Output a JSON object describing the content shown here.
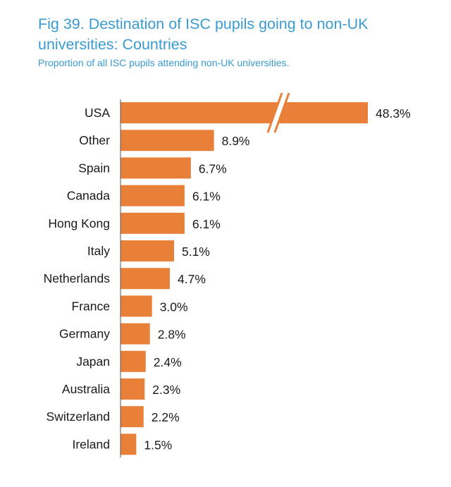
{
  "header": {
    "title": "Fig 39. Destination of ISC pupils going to non-UK universities: Countries",
    "subtitle": "Proportion of all ISC pupils attending non-UK universities."
  },
  "chart_data": {
    "type": "bar",
    "orientation": "horizontal",
    "title": "Fig 39. Destination of ISC pupils going to non-UK universities: Countries",
    "subtitle": "Proportion of all ISC pupils attending non-UK universities.",
    "categories": [
      "USA",
      "Other",
      "Spain",
      "Canada",
      "Hong Kong",
      "Italy",
      "Netherlands",
      "France",
      "Germany",
      "Japan",
      "Australia",
      "Switzerland",
      "Ireland"
    ],
    "values": [
      48.3,
      8.9,
      6.7,
      6.1,
      6.1,
      5.1,
      4.7,
      3.0,
      2.8,
      2.4,
      2.3,
      2.2,
      1.5
    ],
    "data_labels": [
      "48.3%",
      "8.9%",
      "6.7%",
      "6.1%",
      "6.1%",
      "5.1%",
      "4.7%",
      "3.0%",
      "2.8%",
      "2.4%",
      "2.3%",
      "2.2%",
      "1.5%"
    ],
    "axis_break": "USA",
    "unit": "%",
    "grid": false,
    "legend": "none",
    "bar_color": "#e8803a"
  }
}
